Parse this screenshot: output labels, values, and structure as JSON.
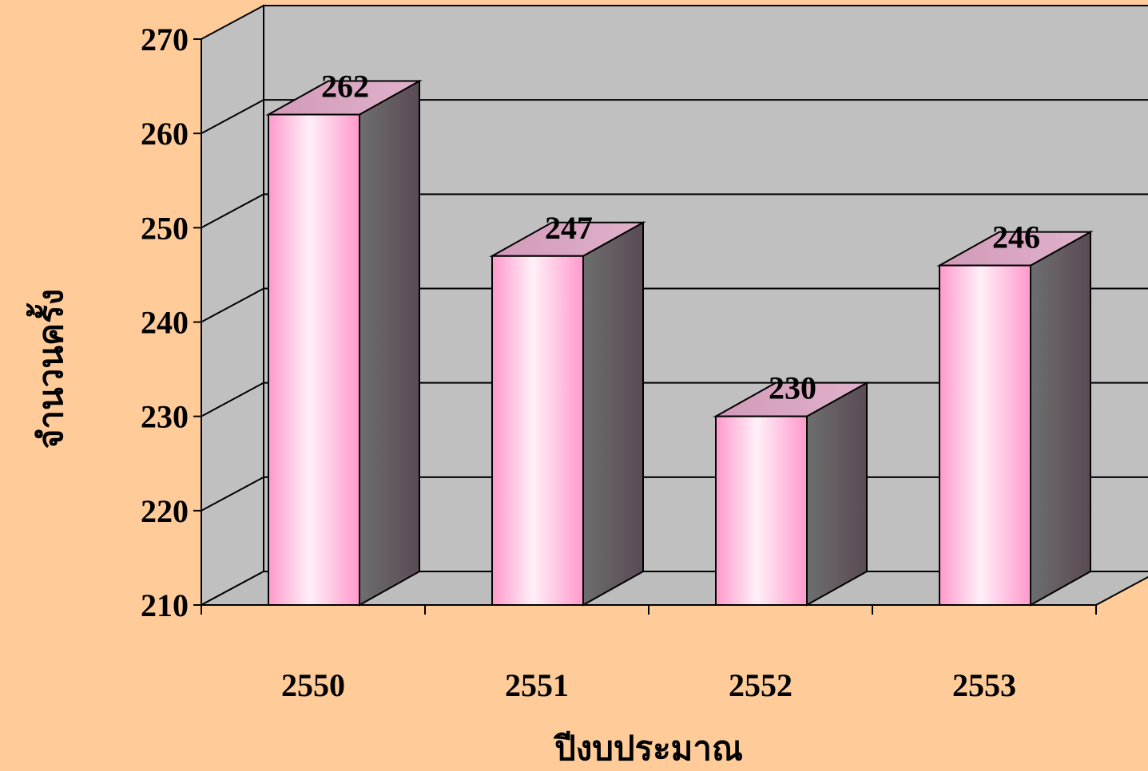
{
  "chart_data": {
    "type": "bar",
    "style": "3d-column",
    "categories": [
      "2550",
      "2551",
      "2552",
      "2553"
    ],
    "values": [
      262,
      247,
      230,
      246
    ],
    "data_labels": [
      "262",
      "247",
      "230",
      "246"
    ],
    "xlabel": "ปีงบประมาณ",
    "ylabel": "จำนวนครั้ง",
    "ylim": [
      210,
      270
    ],
    "yticks": [
      210,
      220,
      230,
      240,
      250,
      260,
      270
    ],
    "ytick_labels": [
      "210",
      "220",
      "230",
      "240",
      "250",
      "260",
      "270"
    ],
    "grid": true,
    "legend": "none"
  },
  "colors": {
    "background": "#FFCC99",
    "wall": "#C0C0C0",
    "bar_front_center": "#FFF0F8",
    "bar_front_edge": "#FF99CC",
    "bar_side": "#6E6E6E",
    "bar_top": "#D29AB8",
    "gridline": "#000000"
  }
}
